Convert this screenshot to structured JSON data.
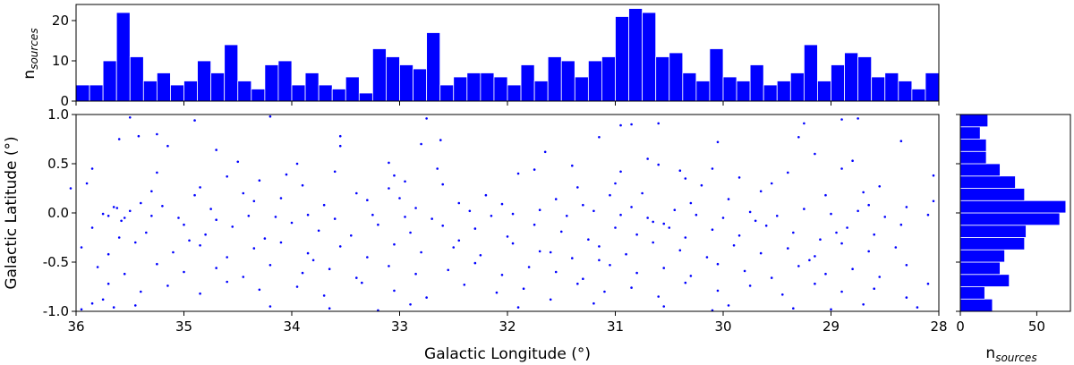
{
  "chart_data": [
    {
      "type": "bar",
      "panel": "top-histogram",
      "ylabel_base": "n",
      "ylabel_sub": "sources",
      "xlim": [
        36,
        28
      ],
      "ylim": [
        0,
        24
      ],
      "yticks": [
        0,
        10,
        20
      ],
      "bar_color": "#0000ff",
      "bin_width": 0.125,
      "bin_start": 36,
      "values": [
        4,
        4,
        10,
        22,
        11,
        5,
        7,
        4,
        5,
        10,
        7,
        14,
        5,
        3,
        9,
        10,
        4,
        7,
        4,
        3,
        6,
        2,
        13,
        11,
        9,
        8,
        17,
        4,
        6,
        7,
        7,
        6,
        4,
        9,
        5,
        11,
        10,
        6,
        10,
        11,
        21,
        23,
        22,
        11,
        12,
        7,
        5,
        13,
        6,
        5,
        9,
        4,
        5,
        7,
        14,
        5,
        9,
        12,
        11,
        6,
        7,
        5,
        3,
        7
      ]
    },
    {
      "type": "scatter",
      "panel": "main",
      "xlabel": "Galactic Longitude (°)",
      "ylabel": "Galactic Latitude (°)",
      "xlim": [
        36,
        28
      ],
      "ylim": [
        -1,
        1
      ],
      "xticks": [
        36,
        35,
        34,
        33,
        32,
        31,
        30,
        29,
        28
      ],
      "yticks": [
        -1.0,
        -0.5,
        0.0,
        0.5,
        1.0
      ],
      "point_color": "#0000ff",
      "points": [
        [
          35.5,
          0.97
        ],
        [
          34.9,
          0.94
        ],
        [
          34.2,
          0.98
        ],
        [
          32.75,
          0.96
        ],
        [
          30.85,
          0.9
        ],
        [
          30.6,
          0.91
        ],
        [
          29.25,
          0.91
        ],
        [
          28.9,
          0.95
        ],
        [
          28.75,
          0.96
        ],
        [
          35.6,
          0.75
        ],
        [
          35.42,
          0.78
        ],
        [
          35.25,
          0.8
        ],
        [
          33.55,
          0.78
        ],
        [
          32.62,
          0.74
        ],
        [
          31.15,
          0.77
        ],
        [
          30.95,
          0.89
        ],
        [
          30.05,
          0.72
        ],
        [
          29.3,
          0.77
        ],
        [
          28.35,
          0.73
        ],
        [
          35.15,
          0.68
        ],
        [
          34.7,
          0.64
        ],
        [
          33.55,
          0.68
        ],
        [
          32.8,
          0.7
        ],
        [
          31.65,
          0.62
        ],
        [
          30.7,
          0.55
        ],
        [
          30.6,
          0.49
        ],
        [
          29.15,
          0.6
        ],
        [
          28.8,
          0.53
        ],
        [
          34.5,
          0.52
        ],
        [
          33.95,
          0.5
        ],
        [
          33.1,
          0.51
        ],
        [
          32.65,
          0.45
        ],
        [
          31.4,
          0.48
        ],
        [
          30.95,
          0.42
        ],
        [
          29.4,
          0.41
        ],
        [
          28.9,
          0.45
        ],
        [
          35.85,
          0.45
        ],
        [
          35.25,
          0.41
        ],
        [
          34.6,
          0.37
        ],
        [
          34.05,
          0.39
        ],
        [
          33.6,
          0.42
        ],
        [
          33.05,
          0.38
        ],
        [
          32.95,
          0.32
        ],
        [
          31.75,
          0.44
        ],
        [
          30.4,
          0.43
        ],
        [
          30.1,
          0.45
        ],
        [
          36.05,
          0.25
        ],
        [
          35.9,
          0.3
        ],
        [
          34.85,
          0.26
        ],
        [
          34.3,
          0.33
        ],
        [
          33.9,
          0.28
        ],
        [
          33.1,
          0.25
        ],
        [
          32.6,
          0.29
        ],
        [
          31.35,
          0.26
        ],
        [
          30.35,
          0.35
        ],
        [
          29.55,
          0.3
        ],
        [
          28.05,
          0.38
        ],
        [
          28.55,
          0.27
        ],
        [
          28.7,
          0.21
        ],
        [
          29.65,
          0.22
        ],
        [
          29.95,
          0.14
        ],
        [
          30.75,
          0.2
        ],
        [
          31.05,
          0.18
        ],
        [
          31.55,
          0.14
        ],
        [
          32.05,
          0.09
        ],
        [
          32.45,
          0.1
        ],
        [
          33.3,
          0.13
        ],
        [
          33.7,
          0.08
        ],
        [
          34.1,
          0.15
        ],
        [
          34.35,
          0.12
        ],
        [
          34.75,
          0.04
        ],
        [
          35.2,
          0.07
        ],
        [
          35.4,
          0.1
        ],
        [
          35.65,
          0.06
        ],
        [
          35.75,
          -0.01
        ],
        [
          35.55,
          -0.05
        ],
        [
          35.3,
          -0.03
        ],
        [
          35.05,
          -0.05
        ],
        [
          34.7,
          -0.07
        ],
        [
          34.4,
          -0.03
        ],
        [
          34.15,
          -0.04
        ],
        [
          33.85,
          -0.02
        ],
        [
          33.6,
          -0.06
        ],
        [
          33.25,
          -0.02
        ],
        [
          32.95,
          -0.04
        ],
        [
          32.7,
          -0.06
        ],
        [
          32.35,
          0.02
        ],
        [
          32.15,
          -0.03
        ],
        [
          31.95,
          -0.01
        ],
        [
          31.7,
          0.03
        ],
        [
          31.45,
          -0.03
        ],
        [
          31.2,
          0.02
        ],
        [
          30.95,
          -0.02
        ],
        [
          30.7,
          -0.05
        ],
        [
          30.45,
          0.03
        ],
        [
          30.25,
          -0.02
        ],
        [
          30.0,
          -0.05
        ],
        [
          29.75,
          0.01
        ],
        [
          29.5,
          -0.03
        ],
        [
          29.25,
          0.04
        ],
        [
          29.0,
          -0.01
        ],
        [
          28.75,
          0.02
        ],
        [
          28.5,
          -0.04
        ],
        [
          28.3,
          0.06
        ],
        [
          28.1,
          -0.02
        ],
        [
          28.05,
          0.12
        ],
        [
          35.85,
          -0.15
        ],
        [
          35.6,
          -0.25
        ],
        [
          35.35,
          -0.2
        ],
        [
          35.0,
          -0.12
        ],
        [
          34.8,
          -0.22
        ],
        [
          34.55,
          -0.14
        ],
        [
          34.25,
          -0.26
        ],
        [
          34.0,
          -0.1
        ],
        [
          33.75,
          -0.18
        ],
        [
          33.45,
          -0.23
        ],
        [
          33.2,
          -0.12
        ],
        [
          32.9,
          -0.2
        ],
        [
          32.6,
          -0.13
        ],
        [
          32.3,
          -0.16
        ],
        [
          32.0,
          -0.24
        ],
        [
          31.75,
          -0.12
        ],
        [
          31.5,
          -0.19
        ],
        [
          31.25,
          -0.27
        ],
        [
          31.0,
          -0.15
        ],
        [
          30.8,
          -0.22
        ],
        [
          30.55,
          -0.11
        ],
        [
          30.35,
          -0.25
        ],
        [
          30.1,
          -0.17
        ],
        [
          29.85,
          -0.23
        ],
        [
          29.6,
          -0.13
        ],
        [
          29.35,
          -0.2
        ],
        [
          29.1,
          -0.27
        ],
        [
          28.85,
          -0.15
        ],
        [
          28.6,
          -0.22
        ],
        [
          28.35,
          -0.12
        ],
        [
          35.95,
          -0.35
        ],
        [
          35.7,
          -0.42
        ],
        [
          35.45,
          -0.3
        ],
        [
          35.1,
          -0.4
        ],
        [
          34.85,
          -0.33
        ],
        [
          34.6,
          -0.45
        ],
        [
          34.35,
          -0.36
        ],
        [
          34.1,
          -0.3
        ],
        [
          33.85,
          -0.41
        ],
        [
          33.55,
          -0.34
        ],
        [
          33.3,
          -0.45
        ],
        [
          33.05,
          -0.32
        ],
        [
          32.8,
          -0.4
        ],
        [
          32.5,
          -0.35
        ],
        [
          32.25,
          -0.43
        ],
        [
          31.95,
          -0.31
        ],
        [
          31.7,
          -0.39
        ],
        [
          31.4,
          -0.46
        ],
        [
          31.15,
          -0.34
        ],
        [
          30.9,
          -0.42
        ],
        [
          30.65,
          -0.3
        ],
        [
          30.4,
          -0.38
        ],
        [
          30.15,
          -0.45
        ],
        [
          29.9,
          -0.33
        ],
        [
          29.65,
          -0.41
        ],
        [
          29.4,
          -0.36
        ],
        [
          29.15,
          -0.44
        ],
        [
          28.9,
          -0.31
        ],
        [
          28.65,
          -0.39
        ],
        [
          28.4,
          -0.35
        ],
        [
          35.8,
          -0.55
        ],
        [
          35.55,
          -0.62
        ],
        [
          35.25,
          -0.52
        ],
        [
          35.0,
          -0.6
        ],
        [
          34.7,
          -0.56
        ],
        [
          34.45,
          -0.65
        ],
        [
          34.2,
          -0.53
        ],
        [
          33.9,
          -0.61
        ],
        [
          33.65,
          -0.57
        ],
        [
          33.4,
          -0.66
        ],
        [
          33.1,
          -0.54
        ],
        [
          32.85,
          -0.62
        ],
        [
          32.55,
          -0.58
        ],
        [
          32.3,
          -0.51
        ],
        [
          32.05,
          -0.63
        ],
        [
          31.8,
          -0.55
        ],
        [
          31.55,
          -0.6
        ],
        [
          31.3,
          -0.67
        ],
        [
          31.05,
          -0.53
        ],
        [
          30.8,
          -0.61
        ],
        [
          30.55,
          -0.56
        ],
        [
          30.3,
          -0.64
        ],
        [
          30.05,
          -0.52
        ],
        [
          29.8,
          -0.59
        ],
        [
          29.55,
          -0.66
        ],
        [
          29.3,
          -0.54
        ],
        [
          29.05,
          -0.62
        ],
        [
          28.8,
          -0.57
        ],
        [
          28.55,
          -0.65
        ],
        [
          28.3,
          -0.53
        ],
        [
          35.7,
          -0.72
        ],
        [
          35.4,
          -0.8
        ],
        [
          35.15,
          -0.74
        ],
        [
          34.85,
          -0.82
        ],
        [
          34.6,
          -0.7
        ],
        [
          34.3,
          -0.78
        ],
        [
          33.95,
          -0.75
        ],
        [
          33.7,
          -0.84
        ],
        [
          33.35,
          -0.71
        ],
        [
          33.05,
          -0.79
        ],
        [
          32.75,
          -0.86
        ],
        [
          32.4,
          -0.73
        ],
        [
          32.1,
          -0.81
        ],
        [
          31.85,
          -0.77
        ],
        [
          31.6,
          -0.88
        ],
        [
          31.35,
          -0.72
        ],
        [
          31.1,
          -0.8
        ],
        [
          30.85,
          -0.76
        ],
        [
          30.6,
          -0.85
        ],
        [
          30.35,
          -0.71
        ],
        [
          30.05,
          -0.79
        ],
        [
          29.75,
          -0.74
        ],
        [
          29.45,
          -0.83
        ],
        [
          29.15,
          -0.72
        ],
        [
          28.9,
          -0.8
        ],
        [
          28.6,
          -0.77
        ],
        [
          28.3,
          -0.86
        ],
        [
          28.1,
          -0.72
        ],
        [
          35.85,
          -0.92
        ],
        [
          35.65,
          -0.96
        ],
        [
          35.45,
          -0.94
        ],
        [
          35.75,
          -0.88
        ],
        [
          34.2,
          -0.95
        ],
        [
          33.65,
          -0.97
        ],
        [
          32.9,
          -0.93
        ],
        [
          31.9,
          -0.96
        ],
        [
          31.2,
          -0.92
        ],
        [
          30.55,
          -0.95
        ],
        [
          29.95,
          -0.94
        ],
        [
          29.35,
          -0.97
        ],
        [
          28.7,
          -0.93
        ],
        [
          28.2,
          -0.96
        ],
        [
          35.95,
          -0.98
        ],
        [
          33.2,
          -0.99
        ],
        [
          30.1,
          -0.99
        ],
        [
          29.0,
          -0.98
        ],
        [
          35.62,
          0.05
        ],
        [
          35.58,
          -0.08
        ],
        [
          35.7,
          -0.03
        ],
        [
          35.5,
          0.02
        ],
        [
          31.9,
          0.4
        ],
        [
          31.6,
          -0.4
        ],
        [
          32.2,
          0.18
        ],
        [
          34.45,
          0.2
        ],
        [
          30.2,
          0.28
        ],
        [
          29.05,
          0.18
        ],
        [
          31.3,
          0.08
        ],
        [
          30.85,
          0.06
        ],
        [
          30.65,
          -0.09
        ],
        [
          30.5,
          -0.15
        ],
        [
          33.4,
          0.2
        ],
        [
          34.9,
          0.18
        ],
        [
          35.3,
          0.22
        ],
        [
          29.7,
          -0.08
        ],
        [
          28.95,
          -0.2
        ],
        [
          32.85,
          0.05
        ],
        [
          33.0,
          0.15
        ],
        [
          31.0,
          0.3
        ],
        [
          30.3,
          0.1
        ],
        [
          29.85,
          0.36
        ],
        [
          28.65,
          0.08
        ],
        [
          34.95,
          -0.28
        ],
        [
          33.8,
          -0.48
        ],
        [
          32.45,
          -0.28
        ],
        [
          31.15,
          -0.48
        ],
        [
          29.2,
          -0.48
        ]
      ]
    },
    {
      "type": "bar",
      "orientation": "horizontal",
      "panel": "right-histogram",
      "xlabel_base": "n",
      "xlabel_sub": "sources",
      "xlim": [
        0,
        72
      ],
      "xticks": [
        0,
        50
      ],
      "ylim": [
        -1,
        1
      ],
      "bar_color": "#0000ff",
      "bin_edges": [
        -1.0,
        -0.875,
        -0.75,
        -0.625,
        -0.5,
        -0.375,
        -0.25,
        -0.125,
        0.0,
        0.125,
        0.25,
        0.375,
        0.5,
        0.625,
        0.75,
        0.875,
        1.0
      ],
      "values": [
        21,
        16,
        32,
        26,
        29,
        42,
        43,
        65,
        69,
        42,
        36,
        26,
        17,
        17,
        13,
        18
      ]
    }
  ]
}
